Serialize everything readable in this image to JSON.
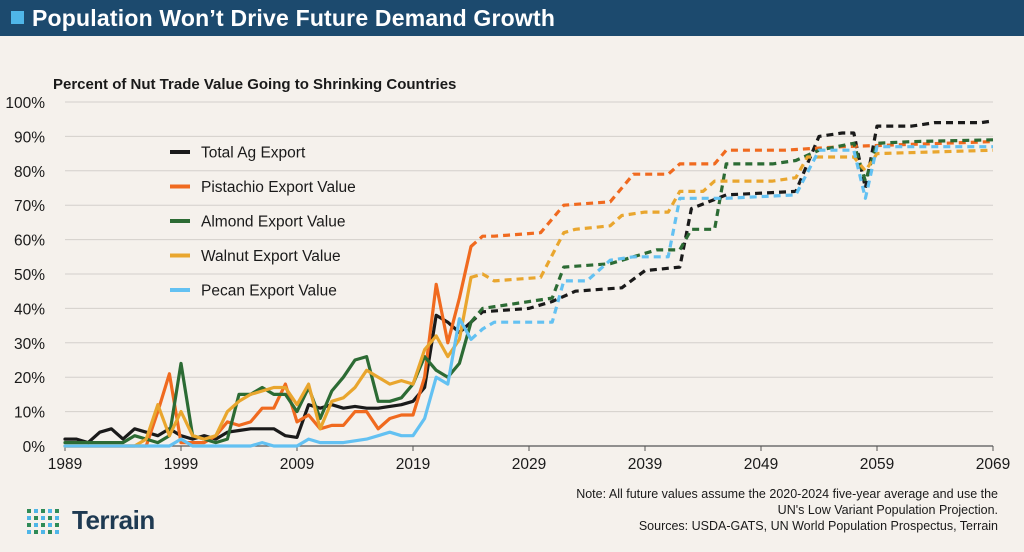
{
  "header": {
    "title": "Population Won’t Drive Future Demand Growth"
  },
  "footer": {
    "note_line1": "Note: All future values assume the 2020-2024 five-year average and use the",
    "note_line2": "UN's Low Variant Population Projection.",
    "sources": "Sources: USDA-GATS, UN World Population Prospectus, Terrain",
    "logo_text": "Terrain"
  },
  "colors": {
    "banner": "#1c4a6e",
    "accent": "#4fb6e8",
    "total": "#1a1a1a",
    "pistachio": "#f06a1f",
    "almond": "#2c6b34",
    "walnut": "#e9a62e",
    "pecan": "#63c1f2"
  },
  "chart_data": {
    "type": "line",
    "title": "Percent of Nut Trade Value Going to Shrinking Countries",
    "xlabel": "",
    "ylabel": "",
    "xlim": [
      1989,
      2069
    ],
    "ylim": [
      0,
      100
    ],
    "x_ticks": [
      1989,
      1999,
      2009,
      2019,
      2029,
      2039,
      2049,
      2059,
      2069
    ],
    "y_ticks": [
      0,
      10,
      20,
      30,
      40,
      50,
      60,
      70,
      80,
      90,
      100
    ],
    "y_tick_labels": [
      "0%",
      "10%",
      "20%",
      "30%",
      "40%",
      "50%",
      "60%",
      "70%",
      "80%",
      "90%",
      "100%"
    ],
    "historical_end_year": 2024,
    "legend_position": "upper-left",
    "series": [
      {
        "name": "Total Ag Export",
        "color_key": "total",
        "points": [
          [
            1989,
            2
          ],
          [
            1990,
            2
          ],
          [
            1991,
            1
          ],
          [
            1992,
            4
          ],
          [
            1993,
            5
          ],
          [
            1994,
            2
          ],
          [
            1995,
            5
          ],
          [
            1996,
            4
          ],
          [
            1997,
            3
          ],
          [
            1998,
            5
          ],
          [
            1999,
            3
          ],
          [
            2000,
            2
          ],
          [
            2001,
            3
          ],
          [
            2002,
            2
          ],
          [
            2003,
            4
          ],
          [
            2004,
            4.5
          ],
          [
            2005,
            5
          ],
          [
            2006,
            5
          ],
          [
            2007,
            5
          ],
          [
            2008,
            3
          ],
          [
            2009,
            2.5
          ],
          [
            2010,
            12
          ],
          [
            2011,
            11
          ],
          [
            2012,
            12
          ],
          [
            2013,
            11
          ],
          [
            2014,
            11.5
          ],
          [
            2015,
            11
          ],
          [
            2016,
            11
          ],
          [
            2017,
            11.5
          ],
          [
            2018,
            12
          ],
          [
            2019,
            13
          ],
          [
            2020,
            17
          ],
          [
            2021,
            38
          ],
          [
            2022,
            36
          ],
          [
            2023,
            33
          ],
          [
            2024,
            36
          ],
          [
            2025,
            39
          ],
          [
            2029,
            40
          ],
          [
            2031,
            42
          ],
          [
            2033,
            45
          ],
          [
            2037,
            46
          ],
          [
            2039,
            51
          ],
          [
            2042,
            52
          ],
          [
            2043,
            69
          ],
          [
            2046,
            73
          ],
          [
            2052,
            74
          ],
          [
            2054,
            90
          ],
          [
            2056,
            91
          ],
          [
            2057,
            91
          ],
          [
            2058,
            75
          ],
          [
            2059,
            93
          ],
          [
            2062,
            93
          ],
          [
            2064,
            94
          ],
          [
            2068,
            94
          ],
          [
            2069,
            94.5
          ]
        ]
      },
      {
        "name": "Pistachio Export Value",
        "color_key": "pistachio",
        "points": [
          [
            1989,
            0
          ],
          [
            1996,
            0
          ],
          [
            1997,
            10
          ],
          [
            1998,
            21
          ],
          [
            1999,
            1
          ],
          [
            2000,
            1
          ],
          [
            2001,
            1
          ],
          [
            2002,
            3
          ],
          [
            2003,
            7
          ],
          [
            2004,
            6
          ],
          [
            2005,
            7
          ],
          [
            2006,
            11
          ],
          [
            2007,
            11
          ],
          [
            2008,
            18
          ],
          [
            2009,
            7
          ],
          [
            2010,
            9
          ],
          [
            2011,
            5
          ],
          [
            2012,
            6
          ],
          [
            2013,
            6
          ],
          [
            2014,
            10
          ],
          [
            2015,
            10
          ],
          [
            2016,
            5
          ],
          [
            2017,
            8
          ],
          [
            2018,
            9
          ],
          [
            2019,
            9
          ],
          [
            2020,
            20
          ],
          [
            2021,
            47
          ],
          [
            2022,
            30
          ],
          [
            2023,
            43
          ],
          [
            2024,
            58
          ],
          [
            2025,
            61
          ],
          [
            2026,
            61
          ],
          [
            2030,
            62
          ],
          [
            2032,
            70
          ],
          [
            2036,
            71
          ],
          [
            2038,
            79
          ],
          [
            2041,
            79
          ],
          [
            2042,
            82
          ],
          [
            2045,
            82
          ],
          [
            2046,
            86
          ],
          [
            2051,
            86
          ],
          [
            2056,
            87
          ],
          [
            2069,
            88.5
          ]
        ]
      },
      {
        "name": "Almond Export Value",
        "color_key": "almond",
        "points": [
          [
            1989,
            1
          ],
          [
            1994,
            1
          ],
          [
            1995,
            3
          ],
          [
            1996,
            2
          ],
          [
            1997,
            1
          ],
          [
            1998,
            3
          ],
          [
            1999,
            24
          ],
          [
            2000,
            3
          ],
          [
            2001,
            2
          ],
          [
            2002,
            1
          ],
          [
            2003,
            2
          ],
          [
            2004,
            15
          ],
          [
            2005,
            15
          ],
          [
            2006,
            17
          ],
          [
            2007,
            15
          ],
          [
            2008,
            15
          ],
          [
            2009,
            10
          ],
          [
            2010,
            17
          ],
          [
            2011,
            8
          ],
          [
            2012,
            16
          ],
          [
            2013,
            20
          ],
          [
            2014,
            25
          ],
          [
            2015,
            26
          ],
          [
            2016,
            13
          ],
          [
            2017,
            13
          ],
          [
            2018,
            14
          ],
          [
            2019,
            18
          ],
          [
            2020,
            26
          ],
          [
            2021,
            22
          ],
          [
            2022,
            20
          ],
          [
            2023,
            24
          ],
          [
            2024,
            36
          ],
          [
            2025,
            40
          ],
          [
            2027,
            41
          ],
          [
            2031,
            43
          ],
          [
            2032,
            52
          ],
          [
            2036,
            53
          ],
          [
            2038,
            55
          ],
          [
            2040,
            57
          ],
          [
            2042,
            57
          ],
          [
            2043,
            63
          ],
          [
            2045,
            63
          ],
          [
            2046,
            82
          ],
          [
            2050,
            82
          ],
          [
            2052,
            83
          ],
          [
            2054,
            86
          ],
          [
            2057,
            88
          ],
          [
            2058,
            77
          ],
          [
            2059,
            88
          ],
          [
            2062,
            88.5
          ],
          [
            2069,
            89
          ]
        ]
      },
      {
        "name": "Walnut Export Value",
        "color_key": "walnut",
        "points": [
          [
            1989,
            0
          ],
          [
            1995,
            0
          ],
          [
            1996,
            2
          ],
          [
            1997,
            12
          ],
          [
            1998,
            3
          ],
          [
            1999,
            10
          ],
          [
            2000,
            3
          ],
          [
            2001,
            2
          ],
          [
            2002,
            3
          ],
          [
            2003,
            10
          ],
          [
            2004,
            13
          ],
          [
            2005,
            15
          ],
          [
            2006,
            16
          ],
          [
            2007,
            17
          ],
          [
            2008,
            17
          ],
          [
            2009,
            12
          ],
          [
            2010,
            18
          ],
          [
            2011,
            5
          ],
          [
            2012,
            13
          ],
          [
            2013,
            14
          ],
          [
            2014,
            17
          ],
          [
            2015,
            22
          ],
          [
            2016,
            20
          ],
          [
            2017,
            18
          ],
          [
            2018,
            19
          ],
          [
            2019,
            18
          ],
          [
            2020,
            28
          ],
          [
            2021,
            32
          ],
          [
            2022,
            26
          ],
          [
            2023,
            31
          ],
          [
            2024,
            49
          ],
          [
            2025,
            50
          ],
          [
            2026,
            48
          ],
          [
            2030,
            49
          ],
          [
            2032,
            62
          ],
          [
            2033,
            63
          ],
          [
            2036,
            64
          ],
          [
            2037,
            67
          ],
          [
            2039,
            68
          ],
          [
            2041,
            68
          ],
          [
            2042,
            74
          ],
          [
            2044,
            74
          ],
          [
            2045,
            77
          ],
          [
            2050,
            77
          ],
          [
            2052,
            78
          ],
          [
            2053,
            84
          ],
          [
            2057,
            84
          ],
          [
            2058,
            80
          ],
          [
            2059,
            85
          ],
          [
            2069,
            86
          ]
        ]
      },
      {
        "name": "Pecan Export Value",
        "color_key": "pecan",
        "points": [
          [
            1989,
            0
          ],
          [
            1998,
            0
          ],
          [
            1999,
            2
          ],
          [
            2000,
            0
          ],
          [
            2005,
            0
          ],
          [
            2006,
            1
          ],
          [
            2007,
            0
          ],
          [
            2009,
            0
          ],
          [
            2010,
            2
          ],
          [
            2011,
            1
          ],
          [
            2012,
            1
          ],
          [
            2013,
            1
          ],
          [
            2014,
            1.5
          ],
          [
            2015,
            2
          ],
          [
            2016,
            3
          ],
          [
            2017,
            4
          ],
          [
            2018,
            3
          ],
          [
            2019,
            3
          ],
          [
            2020,
            8
          ],
          [
            2021,
            20
          ],
          [
            2022,
            18
          ],
          [
            2023,
            37
          ],
          [
            2024,
            31
          ],
          [
            2025,
            34
          ],
          [
            2026,
            36
          ],
          [
            2031,
            36
          ],
          [
            2032,
            48
          ],
          [
            2034,
            48
          ],
          [
            2036,
            54
          ],
          [
            2038,
            55
          ],
          [
            2041,
            55
          ],
          [
            2042,
            72
          ],
          [
            2046,
            72
          ],
          [
            2052,
            73
          ],
          [
            2054,
            86
          ],
          [
            2057,
            86
          ],
          [
            2058,
            72
          ],
          [
            2059,
            87
          ],
          [
            2069,
            87
          ]
        ]
      }
    ]
  }
}
